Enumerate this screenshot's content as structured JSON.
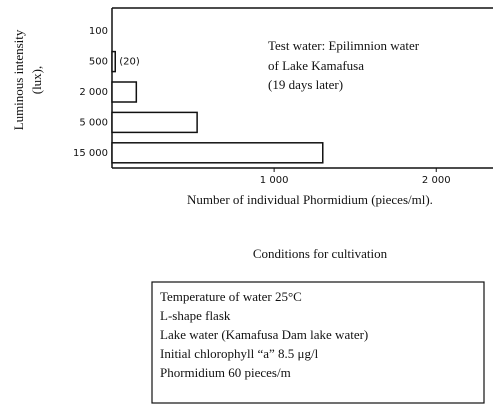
{
  "chart_data": {
    "type": "hbar",
    "y_label": [
      "Luminous intensity",
      "(lux),"
    ],
    "x_label": "Number of individual Phormidium (pieces/ml).",
    "categories": [
      "100",
      "500",
      "2 000",
      "5 000",
      "15 000"
    ],
    "values": [
      0,
      20,
      150,
      525,
      1300
    ],
    "value_labels": [
      null,
      "(20)",
      null,
      null,
      null
    ],
    "color": "#ffffff",
    "xlim": [
      0,
      2350
    ],
    "xticks": [
      {
        "value": 1000,
        "label": "1 000"
      },
      {
        "value": 2000,
        "label": "2 000"
      }
    ],
    "grid": false,
    "annotation": [
      "Test water: Epilimnion water",
      "of Lake Kamafusa",
      "(19 days later)"
    ]
  },
  "conditions": {
    "title": "Conditions for cultivation",
    "lines": [
      "Temperature of water 25°C",
      "L-shape flask",
      "Lake water (Kamafusa Dam lake water)",
      "Initial chlorophyll “a” 8.5 μg/l",
      "Phormidium 60 pieces/m"
    ]
  }
}
